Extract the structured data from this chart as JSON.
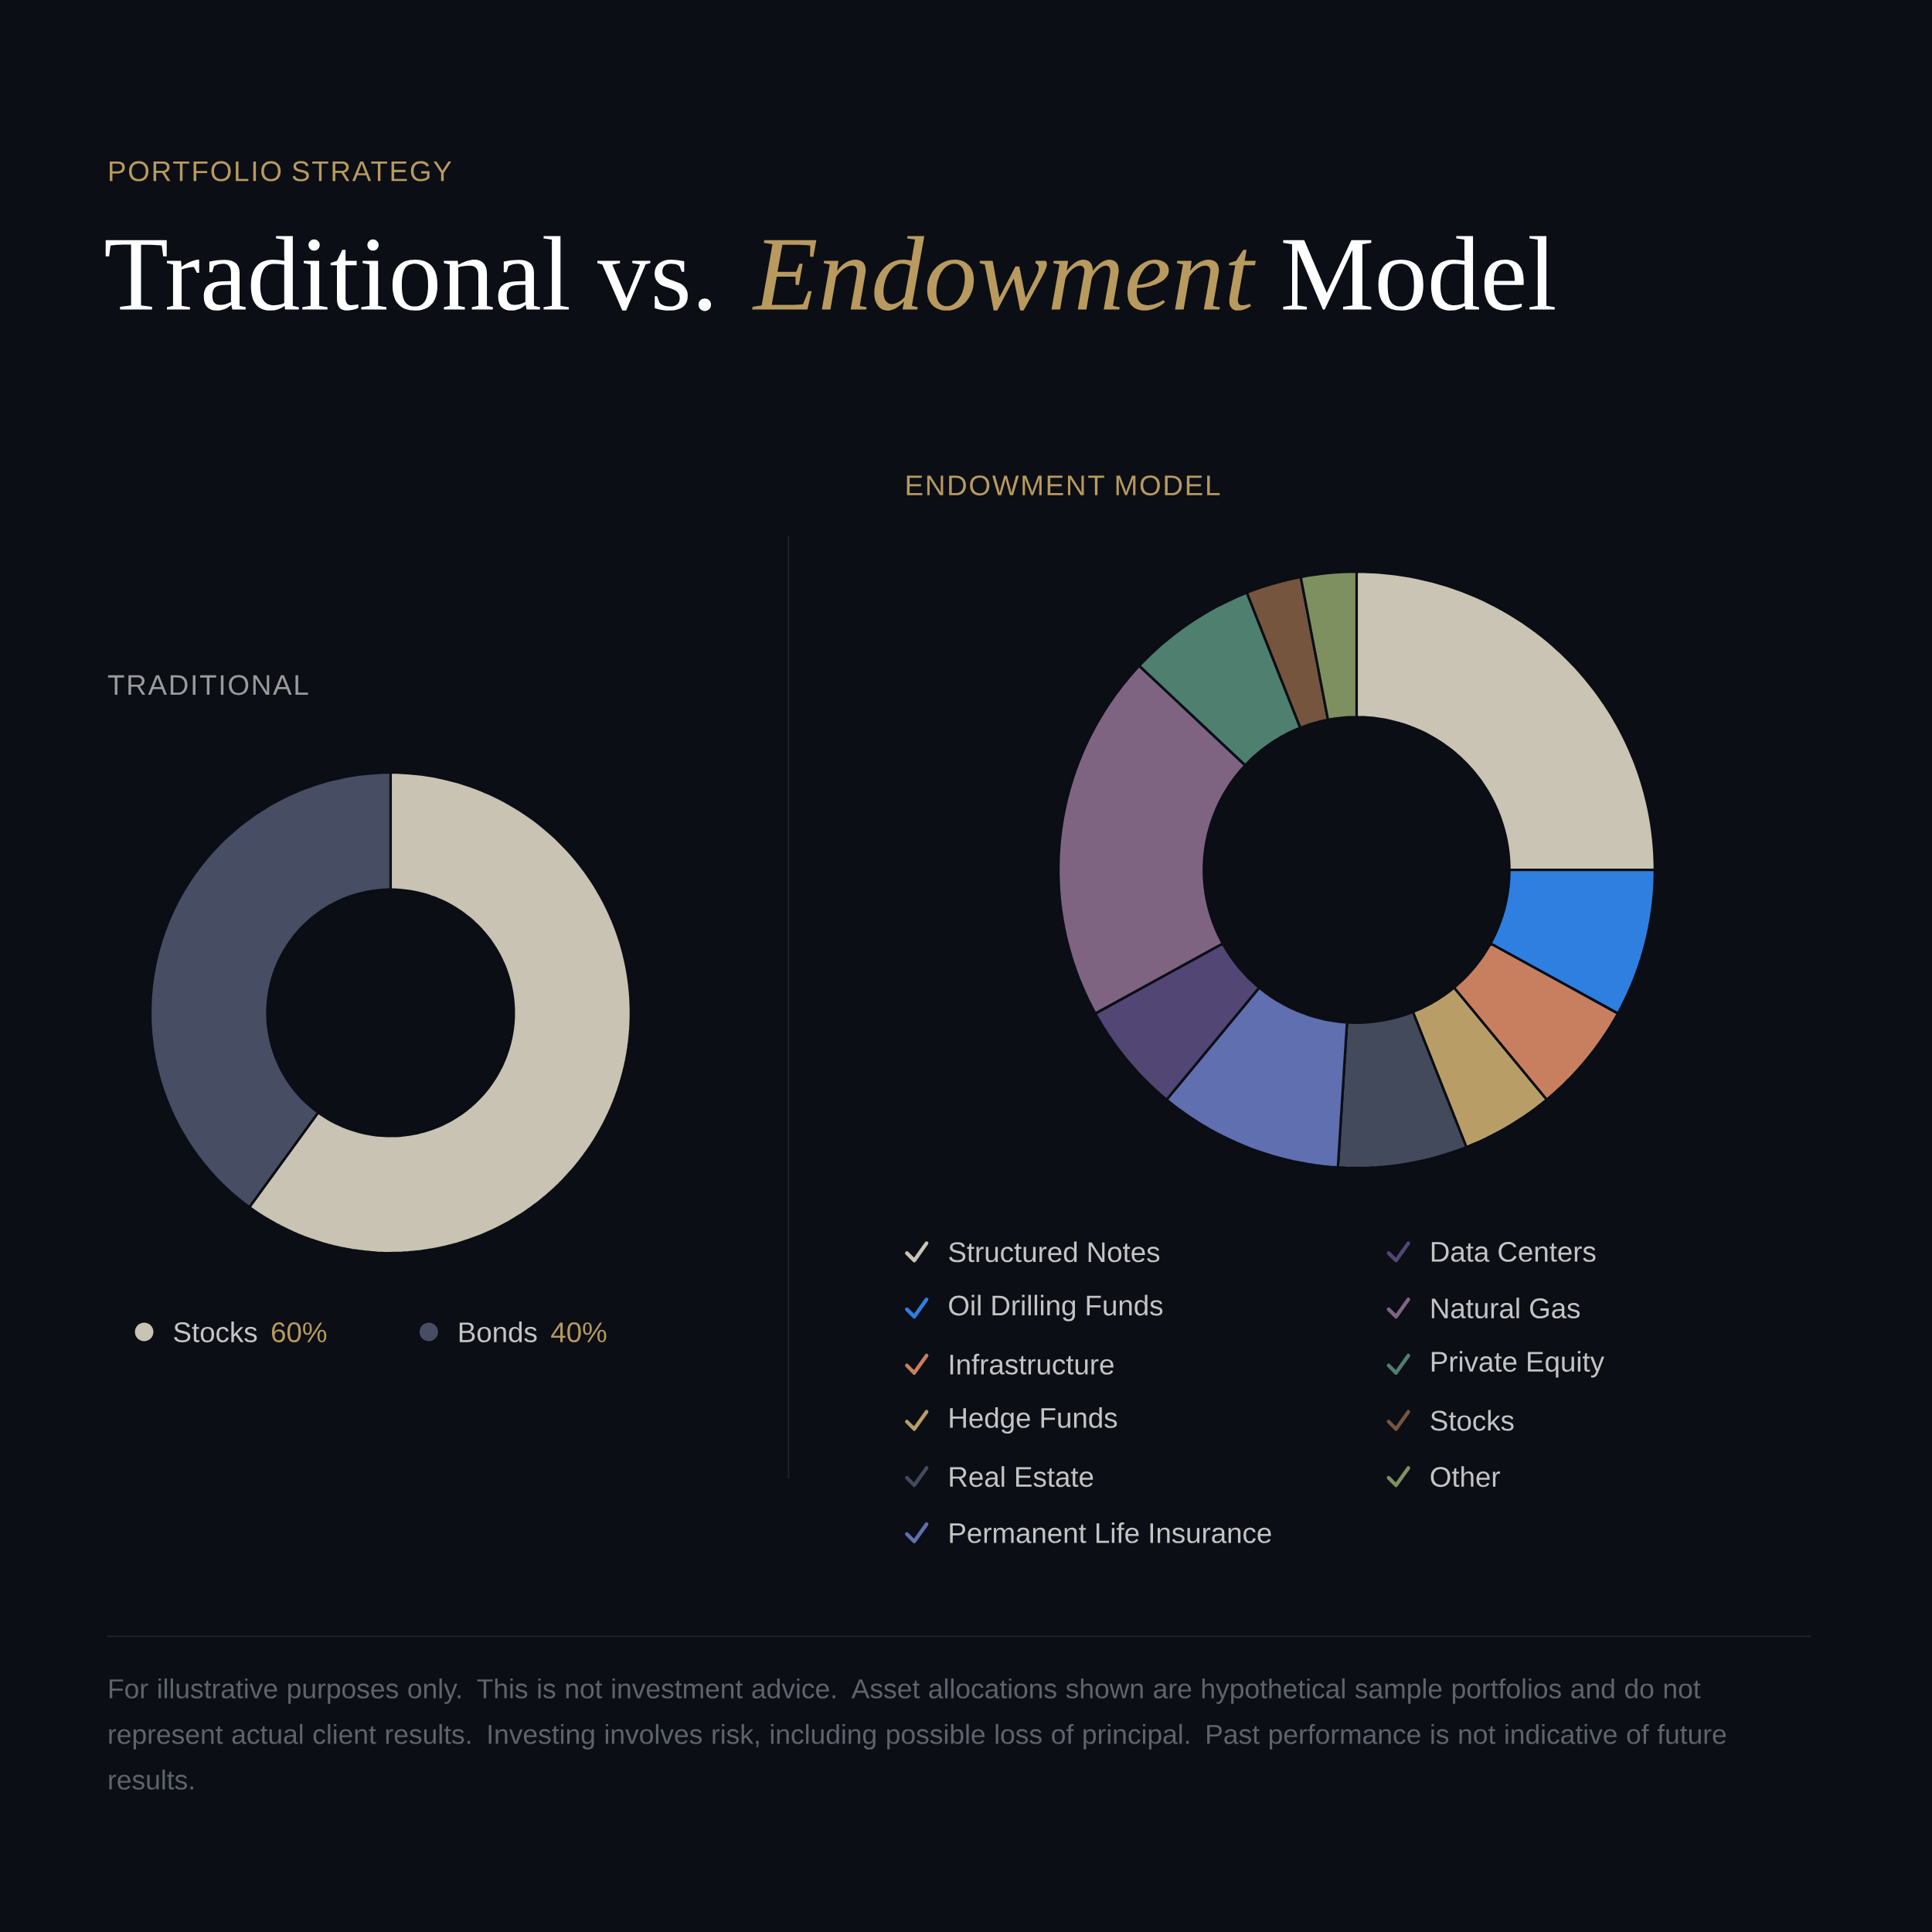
{
  "chart_data": [
    {
      "type": "donut",
      "title": "TRADITIONAL",
      "annotations": [
        "PORTFOLIO STRATEGY",
        "Traditional vs. *Endowment* Model"
      ],
      "categories": [
        "Stocks",
        "Bonds"
      ],
      "values": [
        60,
        40
      ],
      "value_labels": [
        "60%",
        "40%"
      ],
      "colors": [
        "#c8c3b2",
        "#474d63"
      ],
      "legend": "bottom"
    },
    {
      "type": "donut",
      "title": "ENDOWMENT MODEL",
      "annotations": [
        "For illustrative purposes only. This is not investment advice. Asset allocations shown are hypothetical sample portfolios and do not represent actual client results. Investing involves risk, including possible loss of principal. Past performance is not indicative of future results."
      ],
      "categories": [
        "Structured Notes",
        "Oil Drilling Funds",
        "Infrastructure",
        "Hedge Funds",
        "Real Estate",
        "Permanent Life Insurance",
        "Data Centers",
        "Natural Gas",
        "Private Equity",
        "Stocks",
        "Other"
      ],
      "values": [
        25,
        8,
        6,
        5,
        7,
        10,
        6,
        20,
        7,
        3,
        3
      ],
      "colors": [
        "#c9c4b3",
        "#2f7fe0",
        "#c77f5f",
        "#b89e66",
        "#434a5c",
        "#5f6fb0",
        "#524675",
        "#7f6482",
        "#4f7f6f",
        "#76553f",
        "#7f9060"
      ],
      "legend": "bottom"
    }
  ]
}
